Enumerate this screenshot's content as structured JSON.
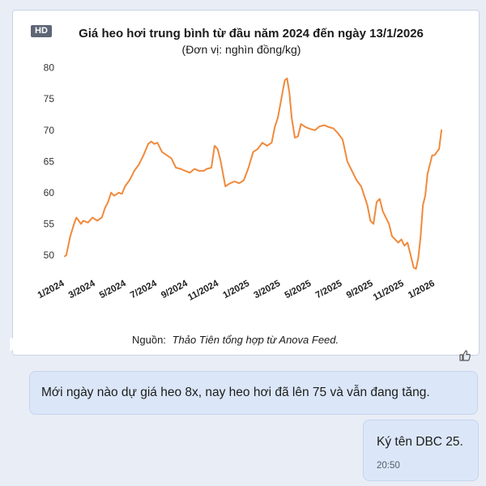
{
  "badge": "HD",
  "chart_data": {
    "type": "line",
    "title": "Giá heo hơi trung bình từ đầu năm 2024 đến ngày 13/1/2026",
    "subtitle": "(Đơn vị: nghìn đồng/kg)",
    "source_prefix": "Nguồn:",
    "source_text": "Thảo Tiên tổng hợp từ Anova Feed.",
    "xlabel": "",
    "ylabel": "",
    "ylim": [
      47,
      81
    ],
    "yticks": [
      50,
      55,
      60,
      65,
      70,
      75,
      80
    ],
    "xlim": [
      0,
      24.4
    ],
    "xticks": [
      {
        "m": 0,
        "label": "1/2024"
      },
      {
        "m": 2,
        "label": "3/2024"
      },
      {
        "m": 4,
        "label": "5/2024"
      },
      {
        "m": 6,
        "label": "7/2024"
      },
      {
        "m": 8,
        "label": "9/2024"
      },
      {
        "m": 10,
        "label": "11/2024"
      },
      {
        "m": 12,
        "label": "1/2025"
      },
      {
        "m": 14,
        "label": "3/2025"
      },
      {
        "m": 16,
        "label": "5/2025"
      },
      {
        "m": 18,
        "label": "7/2025"
      },
      {
        "m": 20,
        "label": "9/2025"
      },
      {
        "m": 22,
        "label": "11/2025"
      },
      {
        "m": 24,
        "label": "1/2026"
      }
    ],
    "grid": false,
    "color": "#f08a3c",
    "series": [
      {
        "x": [
          0,
          0.1,
          0.35,
          0.6,
          0.75,
          0.9,
          1.05,
          1.2,
          1.5,
          1.8,
          2.1,
          2.4,
          2.6,
          2.8,
          3.0,
          3.2,
          3.5,
          3.7,
          3.9,
          4.2,
          4.5,
          4.8,
          5.1,
          5.4,
          5.6,
          5.8,
          6.0,
          6.3,
          6.6,
          6.9,
          7.2,
          7.5,
          7.8,
          8.1,
          8.4,
          8.7,
          9.0,
          9.2,
          9.5,
          9.7,
          9.9,
          10.1,
          10.4,
          10.7,
          11.0,
          11.3,
          11.6,
          11.9,
          12.2,
          12.5,
          12.8,
          13.1,
          13.4,
          13.6,
          13.8,
          13.95,
          14.1,
          14.25,
          14.4,
          14.55,
          14.7,
          14.9,
          15.1,
          15.3,
          15.6,
          15.9,
          16.2,
          16.5,
          16.8,
          17.1,
          17.4,
          17.7,
          18.0,
          18.3,
          18.6,
          18.9,
          19.2,
          19.4,
          19.6,
          19.8,
          20.0,
          20.2,
          20.4,
          20.6,
          20.8,
          21.0,
          21.2,
          21.4,
          21.6,
          21.8,
          22.0,
          22.2,
          22.4,
          22.6,
          22.75,
          22.9,
          23.05,
          23.2,
          23.35,
          23.5,
          23.65,
          23.8,
          23.95,
          24.1,
          24.25,
          24.4
        ],
        "values": [
          49.8,
          50.0,
          53.0,
          55.0,
          56.0,
          55.5,
          55.0,
          55.5,
          55.2,
          56.0,
          55.5,
          56.0,
          57.5,
          58.5,
          60.0,
          59.5,
          60.0,
          59.8,
          61.0,
          62.0,
          63.5,
          64.5,
          66.0,
          67.8,
          68.2,
          67.8,
          68.0,
          66.5,
          66.0,
          65.5,
          64.0,
          63.8,
          63.5,
          63.2,
          63.8,
          63.5,
          63.5,
          63.8,
          64.0,
          67.5,
          67.0,
          65.0,
          61.0,
          61.5,
          61.8,
          61.5,
          62.0,
          64.0,
          66.5,
          67.0,
          68.0,
          67.5,
          68.0,
          70.5,
          72.0,
          74.0,
          76.0,
          78.0,
          78.3,
          76.0,
          72.0,
          68.8,
          69.0,
          71.0,
          70.5,
          70.2,
          70.0,
          70.6,
          70.8,
          70.5,
          70.3,
          69.5,
          68.5,
          65.0,
          63.5,
          62.0,
          61.0,
          59.5,
          58.0,
          55.5,
          55.0,
          58.5,
          59.0,
          57.0,
          56.0,
          55.0,
          53.0,
          52.5,
          52.0,
          52.5,
          51.5,
          52.0,
          50.0,
          48.0,
          47.8,
          49.5,
          53.0,
          58.0,
          59.5,
          63.0,
          64.5,
          66.0,
          66.0,
          66.5,
          67.0,
          70.0
        ]
      }
    ]
  },
  "messages": [
    {
      "text": "Mới ngày nào dự giá heo 8x, nay heo hơi đã lên 75 và vẫn đang tăng."
    },
    {
      "text": "Ký tên DBC 25.",
      "time": "20:50"
    }
  ]
}
